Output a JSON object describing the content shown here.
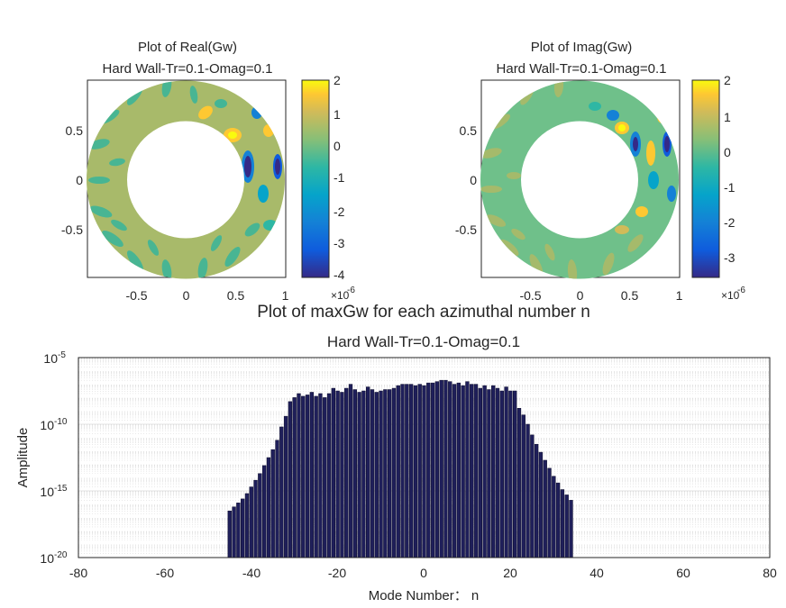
{
  "chart_data": [
    {
      "type": "heatmap",
      "title": "Plot of Real(Gw)",
      "subtitle": "Hard Wall-Tr=0.1-Omag=0.1",
      "xticks": [
        "-0.5",
        "0",
        "0.5",
        "1"
      ],
      "yticks": [
        "0.5",
        "0",
        "-0.5"
      ],
      "colorbar": {
        "ticks": [
          "2",
          "1",
          "0",
          "-1",
          "-2",
          "-3",
          "-4"
        ],
        "range": [
          -4.2,
          2.1
        ],
        "exponent_label": "×10",
        "exponent_power": "-6"
      },
      "domain": "annulus r in [0.5, 1]",
      "colormap": "parula"
    },
    {
      "type": "heatmap",
      "title": "Plot of Imag(Gw)",
      "subtitle": "Hard Wall-Tr=0.1-Omag=0.1",
      "xticks": [
        "-0.5",
        "0",
        "0.5",
        "1"
      ],
      "yticks": [
        "0.5",
        "0",
        "-0.5"
      ],
      "colorbar": {
        "ticks": [
          "2",
          "1",
          "0",
          "-1",
          "-2",
          "-3"
        ],
        "range": [
          -3.6,
          2.1
        ],
        "exponent_label": "×10",
        "exponent_power": "-6"
      },
      "domain": "annulus r in [0.5, 1]",
      "colormap": "parula"
    },
    {
      "type": "bar",
      "title": "Plot of maxGw for each azimuthal number n",
      "subtitle": "Hard Wall-Tr=0.1-Omag=0.1",
      "xlabel": "Mode Number： n",
      "ylabel": "Amplitude",
      "xlim": [
        -80,
        80
      ],
      "ylim_log10": [
        -20,
        -5
      ],
      "yscale": "log",
      "xticks": [
        "-80",
        "-60",
        "-40",
        "-20",
        "0",
        "20",
        "40",
        "60",
        "80"
      ],
      "yticks": [
        {
          "base": "10",
          "exp": "-5"
        },
        {
          "base": "10",
          "exp": "-10"
        },
        {
          "base": "10",
          "exp": "-15"
        },
        {
          "base": "10",
          "exp": "-20"
        }
      ],
      "bar_color": "#1f1f5a",
      "x": [
        -45,
        -44,
        -43,
        -42,
        -41,
        -40,
        -39,
        -38,
        -37,
        -36,
        -35,
        -34,
        -33,
        -32,
        -31,
        -30,
        -29,
        -28,
        -27,
        -26,
        -25,
        -24,
        -23,
        -22,
        -21,
        -20,
        -19,
        -18,
        -17,
        -16,
        -15,
        -14,
        -13,
        -12,
        -11,
        -10,
        -9,
        -8,
        -7,
        -6,
        -5,
        -4,
        -3,
        -2,
        -1,
        0,
        1,
        2,
        3,
        4,
        5,
        6,
        7,
        8,
        9,
        10,
        11,
        12,
        13,
        14,
        15,
        16,
        17,
        18,
        19,
        20,
        21,
        22,
        23,
        24,
        25,
        26,
        27,
        28,
        29,
        30,
        31,
        32,
        33,
        34
      ],
      "log10_values": [
        -16.5,
        -16.2,
        -15.9,
        -15.6,
        -15.2,
        -14.7,
        -14.2,
        -13.7,
        -13.1,
        -12.5,
        -11.9,
        -11.2,
        -10.2,
        -9.4,
        -8.3,
        -8.0,
        -7.7,
        -7.9,
        -7.8,
        -7.6,
        -7.9,
        -7.7,
        -8.0,
        -7.7,
        -7.3,
        -7.5,
        -7.6,
        -7.3,
        -7.0,
        -7.4,
        -7.6,
        -7.5,
        -7.2,
        -7.4,
        -7.6,
        -7.5,
        -7.4,
        -7.4,
        -7.3,
        -7.1,
        -7.0,
        -7.0,
        -7.0,
        -7.1,
        -7.0,
        -7.1,
        -6.9,
        -6.9,
        -6.8,
        -6.7,
        -6.7,
        -6.8,
        -7.0,
        -6.9,
        -7.1,
        -6.8,
        -7.0,
        -7.0,
        -7.3,
        -7.1,
        -7.4,
        -7.1,
        -7.3,
        -7.5,
        -7.2,
        -7.5,
        -7.5,
        -8.8,
        -9.3,
        -10.0,
        -10.8,
        -11.5,
        -12.1,
        -12.7,
        -13.3,
        -13.9,
        -14.4,
        -14.9,
        -15.3,
        -15.7
      ]
    }
  ]
}
